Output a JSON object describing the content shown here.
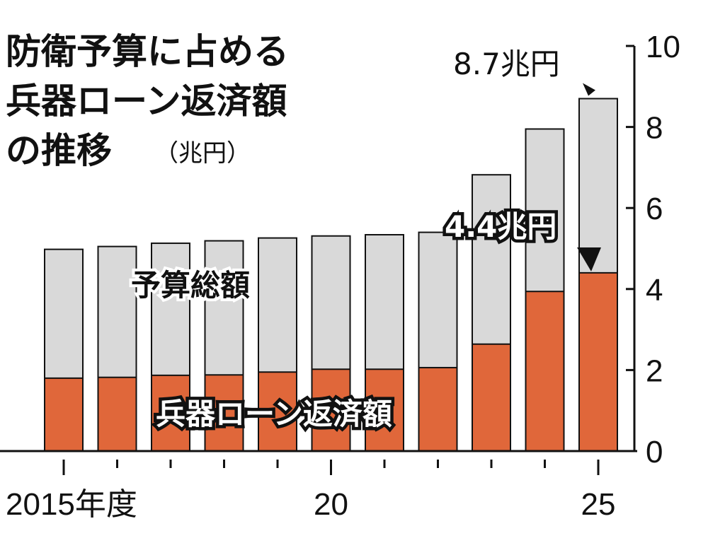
{
  "chart_data": {
    "type": "bar",
    "stacked": "overlay",
    "title": "防衛予算に占める兵器ローン返済額の推移",
    "title_lines": [
      "防衛予算に占める",
      "兵器ローン返済額",
      "の推移"
    ],
    "unit": "（兆円）",
    "categories": [
      "2015",
      "2016",
      "2017",
      "2018",
      "2019",
      "2020",
      "2021",
      "2022",
      "2023",
      "2024",
      "2025"
    ],
    "x_tick_labels": [
      {
        "index": 0,
        "label": "2015年度"
      },
      {
        "index": 5,
        "label": "20"
      },
      {
        "index": 10,
        "label": "25"
      }
    ],
    "series": [
      {
        "name": "予算総額",
        "color": "#d9d9d9",
        "values": [
          4.98,
          5.05,
          5.13,
          5.19,
          5.26,
          5.31,
          5.34,
          5.4,
          6.82,
          7.95,
          8.7
        ]
      },
      {
        "name": "兵器ローン返済額",
        "color": "#e0673a",
        "values": [
          1.8,
          1.82,
          1.87,
          1.88,
          1.95,
          2.02,
          2.02,
          2.06,
          2.64,
          3.94,
          4.4
        ]
      }
    ],
    "ylim": [
      0,
      10
    ],
    "yticks": [
      0,
      2,
      4,
      6,
      8,
      10
    ],
    "y_axis_side": "right",
    "grid": false,
    "annotations": [
      {
        "text": "8.7兆円",
        "series": 0,
        "index": 10
      },
      {
        "text": "4.4兆円",
        "series": 1,
        "index": 10
      }
    ]
  }
}
